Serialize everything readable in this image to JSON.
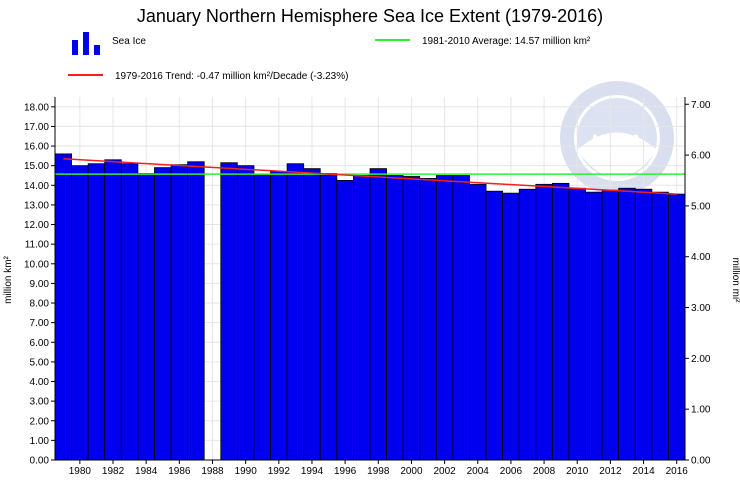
{
  "chart_data": {
    "type": "bar",
    "title": "January Northern Hemisphere Sea Ice Extent (1979-2016)",
    "ylabel_left": "million km²",
    "ylabel_right": "million mi²",
    "ylim_left": [
      0,
      18.5
    ],
    "yticks_left": [
      "0.00",
      "1.00",
      "2.00",
      "3.00",
      "4.00",
      "5.00",
      "6.00",
      "7.00",
      "8.00",
      "9.00",
      "10.00",
      "11.00",
      "12.00",
      "13.00",
      "14.00",
      "15.00",
      "16.00",
      "17.00",
      "18.00"
    ],
    "yticks_right": [
      "0.00",
      "1.00",
      "2.00",
      "3.00",
      "4.00",
      "5.00",
      "6.00",
      "7.00"
    ],
    "xticks": [
      "1980",
      "1982",
      "1984",
      "1986",
      "1988",
      "1990",
      "1992",
      "1994",
      "1996",
      "1998",
      "2000",
      "2002",
      "2004",
      "2006",
      "2008",
      "2010",
      "2012",
      "2014",
      "2016"
    ],
    "years": [
      1979,
      1980,
      1981,
      1982,
      1983,
      1984,
      1985,
      1986,
      1987,
      1988,
      1989,
      1990,
      1991,
      1992,
      1993,
      1994,
      1995,
      1996,
      1997,
      1998,
      1999,
      2000,
      2001,
      2002,
      2003,
      2004,
      2005,
      2006,
      2007,
      2008,
      2009,
      2010,
      2011,
      2012,
      2013,
      2014,
      2015,
      2016
    ],
    "values": [
      15.6,
      15.0,
      15.1,
      15.3,
      15.1,
      14.6,
      14.9,
      15.05,
      15.2,
      null,
      15.15,
      15.0,
      14.55,
      14.7,
      15.1,
      14.85,
      14.6,
      14.25,
      14.5,
      14.85,
      14.5,
      14.45,
      14.35,
      14.5,
      14.5,
      14.05,
      13.7,
      13.6,
      13.8,
      14.05,
      14.1,
      13.85,
      13.65,
      13.75,
      13.85,
      13.8,
      13.65,
      13.55
    ],
    "average": {
      "label": "1981-2010 Average: 14.57 million km²",
      "value": 14.57,
      "color": "#33ee33"
    },
    "trend": {
      "label": "1979-2016 Trend: -0.47 million km²/Decade (-3.23%)",
      "start": 15.35,
      "end": 13.55,
      "color": "#ee2222"
    },
    "series_label": "Sea Ice",
    "bar_color": "#0000ee",
    "grid": true,
    "watermark": "NOAA"
  }
}
